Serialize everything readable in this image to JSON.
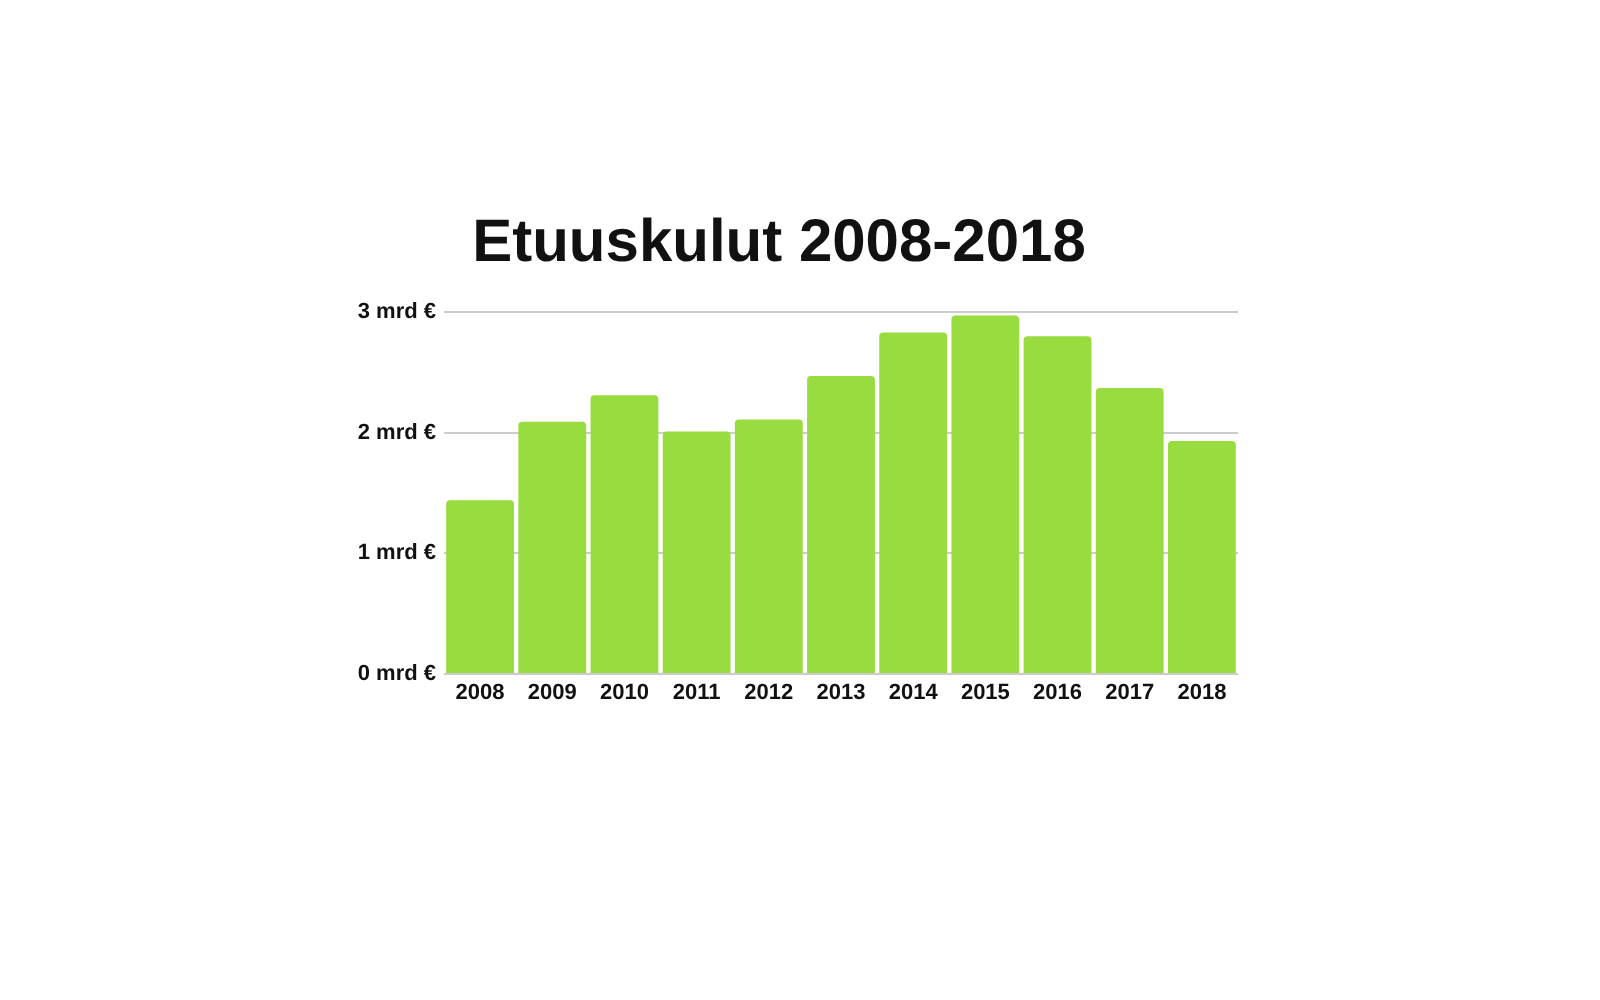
{
  "chart_data": {
    "type": "bar",
    "title": "Etuuskulut 2008-2018",
    "categories": [
      "2008",
      "2009",
      "2010",
      "2011",
      "2012",
      "2013",
      "2014",
      "2015",
      "2016",
      "2017",
      "2018"
    ],
    "values": [
      1.44,
      2.09,
      2.31,
      2.01,
      2.11,
      2.47,
      2.83,
      2.97,
      2.8,
      2.37,
      1.93
    ],
    "color": "#98dc40",
    "ylim": [
      0,
      3
    ],
    "yticks": [
      {
        "value": 0,
        "label": "0 mrd €"
      },
      {
        "value": 1,
        "label": "1 mrd €"
      },
      {
        "value": 2,
        "label": "2 mrd €"
      },
      {
        "value": 3,
        "label": "3 mrd €"
      }
    ],
    "grid": "y"
  }
}
